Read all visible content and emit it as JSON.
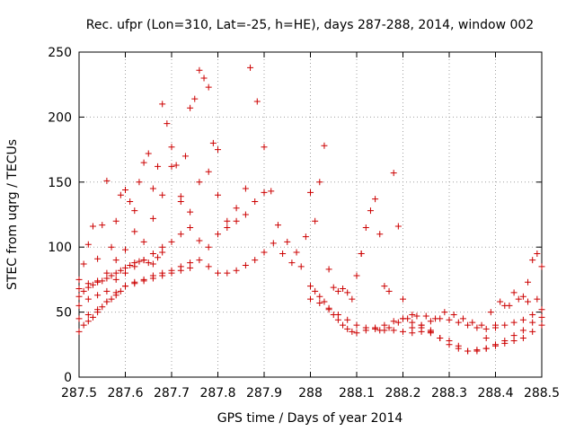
{
  "chart_data": {
    "type": "scatter",
    "title": "Rec. ufpr (Lon=310, Lat=-25, h=HE), days 287-288, 2014, window 002",
    "xlabel": "GPS time / Days of year 2014",
    "ylabel": "STEC from uqrg / TECUs",
    "xlim": [
      287.5,
      288.5
    ],
    "ylim": [
      0,
      250
    ],
    "xticks": [
      287.5,
      287.6,
      287.7,
      287.8,
      287.9,
      288.0,
      288.1,
      288.2,
      288.3,
      288.4,
      288.5
    ],
    "xtick_labels": [
      "287.5",
      "287.6",
      "287.7",
      "287.8",
      "287.9",
      "288",
      "288.1",
      "288.2",
      "288.3",
      "288.4",
      "288.5"
    ],
    "yticks": [
      0,
      50,
      100,
      150,
      200,
      250
    ],
    "ytick_labels": [
      "0",
      "50",
      "100",
      "150",
      "200",
      "250"
    ],
    "grid": true,
    "marker": "plus",
    "color": "#cc0000",
    "series": [
      {
        "name": "early-high-arc",
        "x": [
          287.5,
          287.51,
          287.52,
          287.53,
          287.54,
          287.55,
          287.56,
          287.57,
          287.58,
          287.59,
          287.6,
          287.61,
          287.62,
          287.63,
          287.64,
          287.65,
          287.66,
          287.67,
          287.68,
          287.69,
          287.7,
          287.71,
          287.72,
          287.73,
          287.74,
          287.75,
          287.76,
          287.77,
          287.78,
          287.79,
          287.8
        ],
        "y": [
          75,
          87,
          102,
          116,
          91,
          117,
          151,
          100,
          120,
          140,
          144,
          135,
          128,
          150,
          165,
          172,
          145,
          162,
          210,
          195,
          177,
          163,
          139,
          170,
          207,
          214,
          236,
          230,
          223,
          180,
          175
        ]
      },
      {
        "name": "early-mid-arc",
        "x": [
          287.5,
          287.52,
          287.54,
          287.56,
          287.58,
          287.6,
          287.62,
          287.64,
          287.66,
          287.68,
          287.7,
          287.72,
          287.74,
          287.76,
          287.78,
          287.8,
          287.82,
          287.84,
          287.86
        ],
        "y": [
          68,
          72,
          74,
          80,
          90,
          98,
          112,
          104,
          122,
          140,
          162,
          135,
          127,
          150,
          158,
          140,
          120,
          130,
          145
        ]
      },
      {
        "name": "early-lower-arc",
        "x": [
          287.5,
          287.52,
          287.54,
          287.56,
          287.58,
          287.6,
          287.62,
          287.64,
          287.66,
          287.68,
          287.7,
          287.72,
          287.74,
          287.76,
          287.78,
          287.8,
          287.82,
          287.84,
          287.86,
          287.88,
          287.9
        ],
        "y": [
          55,
          60,
          63,
          66,
          75,
          80,
          85,
          90,
          95,
          100,
          104,
          110,
          115,
          105,
          100,
          110,
          115,
          120,
          125,
          135,
          142
        ]
      },
      {
        "name": "early-base-arc",
        "x": [
          287.5,
          287.52,
          287.54,
          287.56,
          287.58,
          287.6,
          287.62,
          287.64,
          287.66,
          287.68,
          287.7,
          287.72,
          287.74,
          287.76,
          287.78,
          287.8,
          287.82,
          287.84,
          287.86,
          287.88,
          287.9,
          287.92,
          287.94,
          287.96,
          287.98
        ],
        "y": [
          45,
          48,
          52,
          58,
          65,
          70,
          73,
          75,
          78,
          80,
          82,
          85,
          88,
          90,
          85,
          80,
          80,
          82,
          86,
          90,
          96,
          103,
          95,
          88,
          85
        ]
      },
      {
        "name": "early-low-arc",
        "x": [
          287.5,
          287.51,
          287.52,
          287.53,
          287.54,
          287.55,
          287.56,
          287.57,
          287.58,
          287.59,
          287.6,
          287.62,
          287.64,
          287.66,
          287.68,
          287.7,
          287.72,
          287.74
        ],
        "y": [
          35,
          40,
          43,
          46,
          50,
          54,
          58,
          60,
          63,
          66,
          70,
          72,
          74,
          76,
          78,
          80,
          82,
          84
        ]
      },
      {
        "name": "early-dense-band",
        "x": [
          287.5,
          287.51,
          287.52,
          287.53,
          287.54,
          287.55,
          287.56,
          287.57,
          287.58,
          287.59,
          287.6,
          287.61,
          287.62,
          287.63,
          287.64,
          287.65,
          287.66,
          287.67,
          287.68
        ],
        "y": [
          62,
          66,
          69,
          71,
          73,
          74,
          76,
          78,
          80,
          82,
          84,
          86,
          88,
          89,
          90,
          88,
          87,
          92,
          96
        ]
      },
      {
        "name": "isolated-peaks",
        "x": [
          287.87,
          287.885,
          287.9,
          287.915,
          287.93,
          287.95,
          287.97,
          287.99
        ],
        "y": [
          238,
          212,
          177,
          143,
          117,
          104,
          96,
          108
        ]
      },
      {
        "name": "descending-after-288",
        "x": [
          288.0,
          288.01,
          288.02,
          288.03,
          288.04,
          288.05,
          288.06,
          288.07,
          288.08,
          288.09,
          288.1,
          288.11
        ],
        "y": [
          142,
          120,
          150,
          178,
          83,
          69,
          66,
          68,
          65,
          60,
          78,
          95
        ]
      },
      {
        "name": "post-288-upper",
        "x": [
          288.11,
          288.12,
          288.13,
          288.14,
          288.15,
          288.16,
          288.17,
          288.18,
          288.19
        ],
        "y": [
          95,
          115,
          128,
          137,
          110,
          70,
          66,
          157,
          116
        ]
      },
      {
        "name": "post-288-descent",
        "x": [
          288.0,
          288.01,
          288.02,
          288.03,
          288.04,
          288.05,
          288.06,
          288.07,
          288.08,
          288.09,
          288.1,
          288.12,
          288.14,
          288.16,
          288.18,
          288.2
        ],
        "y": [
          70,
          66,
          62,
          58,
          53,
          48,
          44,
          40,
          37,
          35,
          34,
          36,
          38,
          40,
          43,
          45
        ]
      },
      {
        "name": "mid-day-2-low",
        "x": [
          288.0,
          288.02,
          288.04,
          288.06,
          288.08,
          288.1,
          288.12,
          288.14,
          288.16,
          288.18,
          288.2,
          288.22,
          288.24,
          288.26
        ],
        "y": [
          60,
          57,
          52,
          48,
          44,
          40,
          38,
          37,
          36,
          36,
          35,
          34,
          35,
          36
        ]
      },
      {
        "name": "late-trough-a",
        "x": [
          288.2,
          288.22,
          288.24,
          288.26,
          288.28,
          288.3,
          288.32,
          288.34,
          288.36,
          288.38,
          288.4,
          288.42,
          288.44,
          288.46,
          288.48,
          288.5
        ],
        "y": [
          60,
          48,
          40,
          35,
          30,
          25,
          22,
          20,
          21,
          22,
          24,
          26,
          28,
          30,
          35,
          40
        ]
      },
      {
        "name": "late-trough-b",
        "x": [
          288.2,
          288.22,
          288.24,
          288.26,
          288.28,
          288.3,
          288.32,
          288.34,
          288.36,
          288.38,
          288.4,
          288.42,
          288.44,
          288.46,
          288.48,
          288.5
        ],
        "y": [
          45,
          42,
          38,
          34,
          30,
          28,
          24,
          20,
          20,
          22,
          25,
          28,
          32,
          36,
          42,
          46
        ]
      },
      {
        "name": "late-trough-c",
        "x": [
          288.22,
          288.24,
          288.26,
          288.28,
          288.3,
          288.32,
          288.34,
          288.36,
          288.38,
          288.4,
          288.42,
          288.44,
          288.46,
          288.48,
          288.5
        ],
        "y": [
          38,
          40,
          43,
          45,
          44,
          42,
          40,
          38,
          37,
          38,
          40,
          42,
          44,
          48,
          52
        ]
      },
      {
        "name": "late-rise",
        "x": [
          288.38,
          288.4,
          288.42,
          288.44,
          288.46,
          288.47,
          288.48,
          288.49,
          288.5
        ],
        "y": [
          30,
          40,
          55,
          65,
          62,
          73,
          90,
          95,
          85
        ]
      },
      {
        "name": "late-misc",
        "x": [
          288.15,
          288.17,
          288.19,
          288.21,
          288.23,
          288.25,
          288.27,
          288.29,
          288.31,
          288.33,
          288.35,
          288.37,
          288.39,
          288.41,
          288.43,
          288.45,
          288.47,
          288.49
        ],
        "y": [
          36,
          38,
          42,
          45,
          47,
          47,
          45,
          50,
          48,
          45,
          42,
          40,
          50,
          58,
          55,
          60,
          58,
          60
        ]
      }
    ]
  }
}
